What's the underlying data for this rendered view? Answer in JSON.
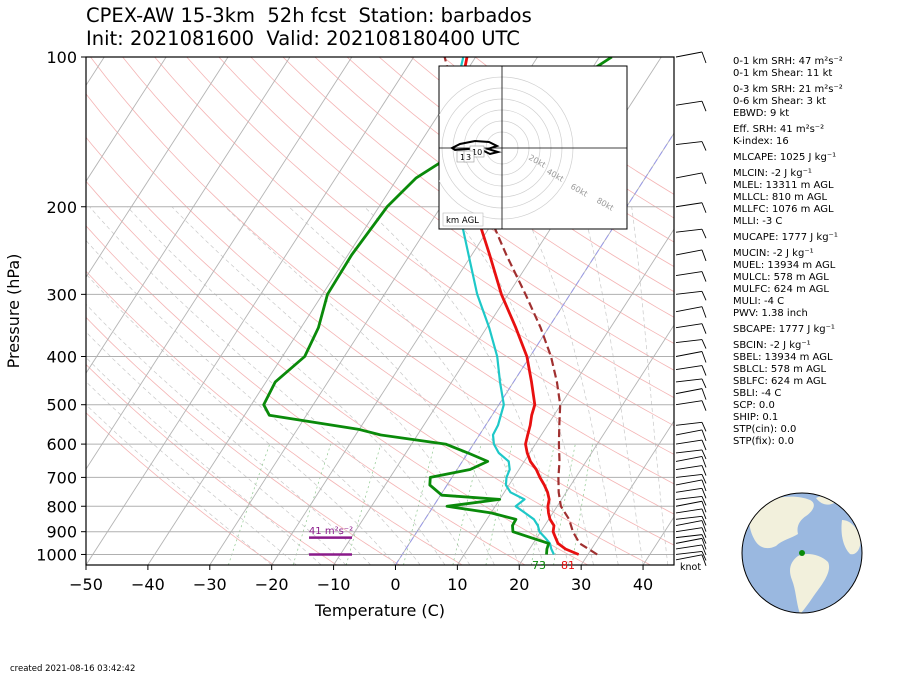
{
  "title": {
    "line1": "CPEX-AW 15-3km  52h fcst  Station: barbados",
    "line2": "Init: 2021081600  Valid: 202108180400 UTC"
  },
  "chart_data": {
    "type": "line",
    "subtype": "skew-T log-p diagram",
    "xlabel": "Temperature (C)",
    "ylabel": "Pressure (hPa)",
    "xlim": [
      -50,
      45
    ],
    "ylim": [
      1050,
      100
    ],
    "yscale": "log",
    "xticks": [
      "−50",
      "−40",
      "−30",
      "−20",
      "−10",
      "0",
      "10",
      "20",
      "30",
      "40"
    ],
    "yticks": [
      "100",
      "200",
      "300",
      "400",
      "500",
      "600",
      "700",
      "800",
      "900",
      "1000"
    ],
    "grid": true,
    "colors": {
      "temperature": "#e81010",
      "dewpoint": "#0a8a0a",
      "wetbulb": "#1ec8c8",
      "parcel": "#a03030",
      "srh": "#8a1a8a"
    },
    "temperature": [
      [
        1000,
        28.5
      ],
      [
        975,
        25.8
      ],
      [
        950,
        24.0
      ],
      [
        925,
        23.0
      ],
      [
        900,
        22.0
      ],
      [
        875,
        21.5
      ],
      [
        850,
        20.2
      ],
      [
        825,
        19.3
      ],
      [
        800,
        18.5
      ],
      [
        775,
        18.0
      ],
      [
        750,
        17.0
      ],
      [
        725,
        15.7
      ],
      [
        700,
        14.2
      ],
      [
        675,
        12.8
      ],
      [
        650,
        11.0
      ],
      [
        625,
        9.6
      ],
      [
        600,
        8.4
      ],
      [
        575,
        7.8
      ],
      [
        550,
        7.2
      ],
      [
        525,
        6.4
      ],
      [
        500,
        5.8
      ],
      [
        450,
        2.9
      ],
      [
        400,
        -0.5
      ],
      [
        350,
        -5.3
      ],
      [
        300,
        -11.1
      ],
      [
        250,
        -17.1
      ],
      [
        200,
        -24.6
      ],
      [
        175,
        -29.0
      ],
      [
        150,
        -33.6
      ],
      [
        125,
        -37.9
      ],
      [
        100,
        -41.4
      ]
    ],
    "dewpoint": [
      [
        1000,
        23.3
      ],
      [
        975,
        22.8
      ],
      [
        950,
        22.5
      ],
      [
        925,
        19.0
      ],
      [
        900,
        15.5
      ],
      [
        875,
        14.8
      ],
      [
        850,
        14.7
      ],
      [
        825,
        10.0
      ],
      [
        800,
        2.2
      ],
      [
        775,
        10.0
      ],
      [
        760,
        0.2
      ],
      [
        725,
        -2.8
      ],
      [
        700,
        -3.5
      ],
      [
        675,
        2.1
      ],
      [
        650,
        4.1
      ],
      [
        625,
        0.0
      ],
      [
        600,
        -4.5
      ],
      [
        575,
        -16.0
      ],
      [
        560,
        -20.2
      ],
      [
        525,
        -36.0
      ],
      [
        500,
        -38.0
      ],
      [
        450,
        -38.5
      ],
      [
        400,
        -36.4
      ],
      [
        350,
        -37.2
      ],
      [
        300,
        -39.2
      ],
      [
        250,
        -39.4
      ],
      [
        200,
        -38.7
      ],
      [
        175,
        -37.0
      ],
      [
        150,
        -32.0
      ],
      [
        125,
        -25.0
      ],
      [
        100,
        -18.0
      ]
    ],
    "wetbulb": [
      [
        1000,
        24.5
      ],
      [
        975,
        23.5
      ],
      [
        950,
        22.7
      ],
      [
        925,
        21.3
      ],
      [
        900,
        19.8
      ],
      [
        875,
        18.9
      ],
      [
        850,
        17.6
      ],
      [
        825,
        15.5
      ],
      [
        800,
        13.3
      ],
      [
        775,
        14.0
      ],
      [
        750,
        11.0
      ],
      [
        725,
        9.5
      ],
      [
        700,
        8.8
      ],
      [
        675,
        8.5
      ],
      [
        650,
        7.5
      ],
      [
        625,
        5.0
      ],
      [
        600,
        3.3
      ],
      [
        575,
        2.2
      ],
      [
        550,
        2.0
      ],
      [
        500,
        0.8
      ],
      [
        450,
        -2.2
      ],
      [
        400,
        -5.3
      ],
      [
        350,
        -9.6
      ],
      [
        300,
        -15.0
      ],
      [
        250,
        -20.5
      ],
      [
        200,
        -27.2
      ],
      [
        175,
        -31.0
      ],
      [
        150,
        -35.0
      ],
      [
        125,
        -38.8
      ],
      [
        100,
        -42.0
      ]
    ],
    "parcel": [
      [
        1000,
        31.5
      ],
      [
        950,
        27.5
      ],
      [
        900,
        25.2
      ],
      [
        850,
        23.3
      ],
      [
        800,
        20.6
      ],
      [
        750,
        18.8
      ],
      [
        700,
        17.2
      ],
      [
        650,
        15.7
      ],
      [
        600,
        13.8
      ],
      [
        550,
        11.9
      ],
      [
        500,
        9.9
      ],
      [
        450,
        7.0
      ],
      [
        400,
        3.4
      ],
      [
        350,
        -1.3
      ],
      [
        300,
        -7.2
      ],
      [
        250,
        -14.4
      ],
      [
        200,
        -22.8
      ],
      [
        150,
        -32.5
      ],
      [
        100,
        -45.0
      ]
    ],
    "surface_labels": {
      "dewpoint": "73",
      "temperature": "81"
    },
    "srh_label": "41 m²s⁻²",
    "wind_unit": "knot",
    "hodograph": {
      "rings": [
        "20kt",
        "40kt",
        "60kt",
        "80kt"
      ],
      "labels": [
        "10",
        "1",
        "3"
      ],
      "legend": "km AGL"
    }
  },
  "parameters": [
    "0-1 km SRH: 47 m²s⁻²",
    "0-1 km Shear: 11 kt",
    "0-3 km SRH: 21 m²s⁻²",
    "0-6 km Shear: 3 kt",
    "EBWD: 9 kt",
    "Eff. SRH: 41 m²s⁻²",
    "K-index: 16",
    "MLCAPE: 1025 J kg⁻¹",
    "MLCIN: -2 J kg⁻¹",
    "MLEL: 13311 m AGL",
    "MLLCL: 810 m AGL",
    "MLLFC: 1076 m AGL",
    "MLLI: -3 C",
    "MUCAPE: 1777 J kg⁻¹",
    "MUCIN: -2 J kg⁻¹",
    "MUEL: 13934 m AGL",
    "MULCL: 578 m AGL",
    "MULFC: 624 m AGL",
    "MULI: -4 C",
    "PWV: 1.38 inch",
    "SBCAPE: 1777 J kg⁻¹",
    "SBCIN: -2 J kg⁻¹",
    "SBEL: 13934 m AGL",
    "SBLCL: 578 m AGL",
    "SBLFC: 624 m AGL",
    "SBLI: -4 C",
    "SCP: 0.0",
    "SHIP: 0.1",
    "STP(cin): 0.0",
    "STP(fix): 0.0"
  ],
  "footer": "created 2021-08-16 03:42:42"
}
